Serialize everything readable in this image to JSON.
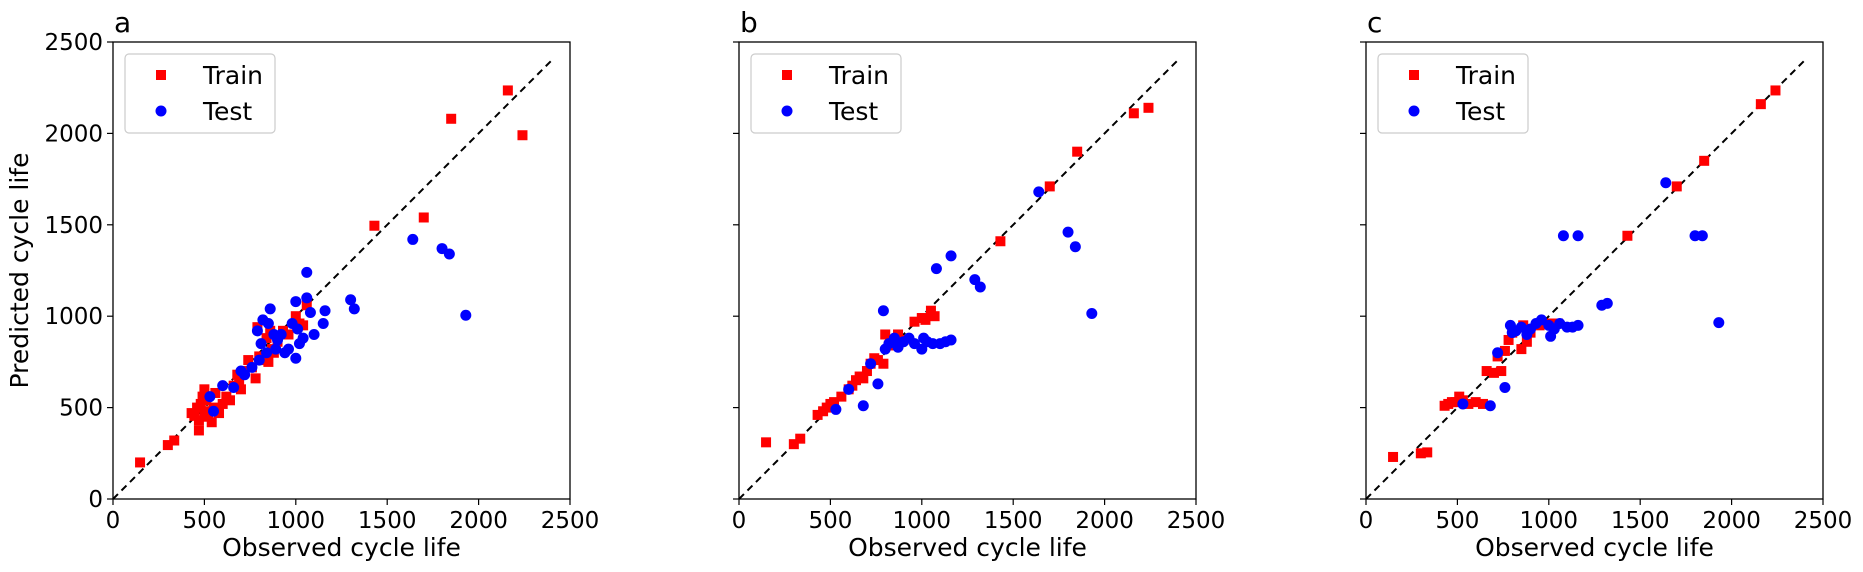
{
  "chart_data": [
    {
      "type": "scatter",
      "panel_label": "a",
      "xlabel": "Observed cycle life",
      "ylabel": "Predicted cycle life",
      "xlim": [
        0,
        2500
      ],
      "ylim": [
        0,
        2500
      ],
      "xticks": [
        "0",
        "500",
        "1000",
        "1500",
        "2000",
        "2500"
      ],
      "yticks": [
        "0",
        "500",
        "1000",
        "1500",
        "2000",
        "2500"
      ],
      "reference_line": {
        "style": "dashed",
        "color": "#000000",
        "from": [
          0,
          0
        ],
        "to": [
          2400,
          2400
        ]
      },
      "legend": {
        "placement": "top-left",
        "entries": [
          "Train",
          "Test"
        ]
      },
      "series": [
        {
          "name": "Train",
          "marker": "square",
          "color": "#ff0000",
          "points": [
            [
              148,
              200
            ],
            [
              300,
              295
            ],
            [
              335,
              320
            ],
            [
              430,
              470
            ],
            [
              445,
              455
            ],
            [
              460,
              500
            ],
            [
              470,
              430
            ],
            [
              470,
              375
            ],
            [
              480,
              520
            ],
            [
              490,
              560
            ],
            [
              500,
              480
            ],
            [
              500,
              600
            ],
            [
              510,
              540
            ],
            [
              520,
              450
            ],
            [
              540,
              420
            ],
            [
              550,
              500
            ],
            [
              560,
              580
            ],
            [
              580,
              470
            ],
            [
              600,
              520
            ],
            [
              620,
              560
            ],
            [
              640,
              540
            ],
            [
              660,
              620
            ],
            [
              680,
              680
            ],
            [
              690,
              650
            ],
            [
              700,
              600
            ],
            [
              720,
              700
            ],
            [
              740,
              760
            ],
            [
              760,
              720
            ],
            [
              780,
              660
            ],
            [
              790,
              940
            ],
            [
              800,
              780
            ],
            [
              820,
              760
            ],
            [
              840,
              880
            ],
            [
              850,
              750
            ],
            [
              860,
              920
            ],
            [
              870,
              820
            ],
            [
              880,
              800
            ],
            [
              900,
              860
            ],
            [
              930,
              920
            ],
            [
              960,
              900
            ],
            [
              1000,
              1000
            ],
            [
              1020,
              960
            ],
            [
              1040,
              950
            ],
            [
              1060,
              1060
            ],
            [
              1430,
              1495
            ],
            [
              1700,
              1540
            ],
            [
              1850,
              2080
            ],
            [
              2160,
              2235
            ],
            [
              2240,
              1990
            ]
          ]
        },
        {
          "name": "Test",
          "marker": "circle",
          "color": "#0000ff",
          "points": [
            [
              530,
              560
            ],
            [
              550,
              480
            ],
            [
              600,
              620
            ],
            [
              660,
              610
            ],
            [
              700,
              700
            ],
            [
              720,
              680
            ],
            [
              760,
              720
            ],
            [
              790,
              920
            ],
            [
              800,
              760
            ],
            [
              810,
              850
            ],
            [
              820,
              980
            ],
            [
              840,
              800
            ],
            [
              850,
              960
            ],
            [
              860,
              1040
            ],
            [
              880,
              900
            ],
            [
              890,
              820
            ],
            [
              900,
              870
            ],
            [
              920,
              900
            ],
            [
              940,
              800
            ],
            [
              960,
              820
            ],
            [
              980,
              960
            ],
            [
              1000,
              1080
            ],
            [
              1000,
              770
            ],
            [
              1010,
              930
            ],
            [
              1020,
              850
            ],
            [
              1040,
              880
            ],
            [
              1060,
              1240
            ],
            [
              1060,
              1100
            ],
            [
              1080,
              1020
            ],
            [
              1100,
              900
            ],
            [
              1150,
              960
            ],
            [
              1160,
              1030
            ],
            [
              1300,
              1090
            ],
            [
              1320,
              1040
            ],
            [
              1640,
              1420
            ],
            [
              1800,
              1370
            ],
            [
              1840,
              1340
            ],
            [
              1930,
              1005
            ]
          ]
        }
      ]
    },
    {
      "type": "scatter",
      "panel_label": "b",
      "xlabel": "Observed cycle life",
      "ylabel": "",
      "xlim": [
        0,
        2500
      ],
      "ylim": [
        0,
        2500
      ],
      "xticks": [
        "0",
        "500",
        "1000",
        "1500",
        "2000",
        "2500"
      ],
      "yticks": [],
      "reference_line": {
        "style": "dashed",
        "color": "#000000",
        "from": [
          0,
          0
        ],
        "to": [
          2400,
          2400
        ]
      },
      "legend": {
        "placement": "top-left",
        "entries": [
          "Train",
          "Test"
        ]
      },
      "series": [
        {
          "name": "Train",
          "marker": "square",
          "color": "#ff0000",
          "points": [
            [
              148,
              310
            ],
            [
              300,
              300
            ],
            [
              335,
              330
            ],
            [
              430,
              460
            ],
            [
              460,
              480
            ],
            [
              480,
              500
            ],
            [
              500,
              520
            ],
            [
              520,
              530
            ],
            [
              560,
              560
            ],
            [
              600,
              600
            ],
            [
              620,
              620
            ],
            [
              640,
              650
            ],
            [
              660,
              670
            ],
            [
              680,
              660
            ],
            [
              700,
              700
            ],
            [
              720,
              740
            ],
            [
              740,
              770
            ],
            [
              760,
              760
            ],
            [
              790,
              740
            ],
            [
              800,
              900
            ],
            [
              820,
              840
            ],
            [
              850,
              860
            ],
            [
              870,
              900
            ],
            [
              900,
              870
            ],
            [
              960,
              970
            ],
            [
              1000,
              990
            ],
            [
              1020,
              980
            ],
            [
              1050,
              1030
            ],
            [
              1070,
              1000
            ],
            [
              1430,
              1410
            ],
            [
              1700,
              1710
            ],
            [
              1850,
              1900
            ],
            [
              2160,
              2110
            ],
            [
              2240,
              2140
            ]
          ]
        },
        {
          "name": "Test",
          "marker": "circle",
          "color": "#0000ff",
          "points": [
            [
              530,
              490
            ],
            [
              600,
              600
            ],
            [
              680,
              510
            ],
            [
              720,
              740
            ],
            [
              760,
              630
            ],
            [
              790,
              1030
            ],
            [
              800,
              820
            ],
            [
              820,
              850
            ],
            [
              850,
              880
            ],
            [
              870,
              830
            ],
            [
              900,
              860
            ],
            [
              930,
              880
            ],
            [
              960,
              850
            ],
            [
              1000,
              820
            ],
            [
              1010,
              880
            ],
            [
              1030,
              860
            ],
            [
              1060,
              850
            ],
            [
              1080,
              1260
            ],
            [
              1100,
              850
            ],
            [
              1130,
              860
            ],
            [
              1160,
              1330
            ],
            [
              1160,
              870
            ],
            [
              1290,
              1200
            ],
            [
              1320,
              1160
            ],
            [
              1640,
              1680
            ],
            [
              1800,
              1460
            ],
            [
              1840,
              1380
            ],
            [
              1930,
              1015
            ]
          ]
        }
      ]
    },
    {
      "type": "scatter",
      "panel_label": "c",
      "xlabel": "Observed cycle life",
      "ylabel": "",
      "xlim": [
        0,
        2500
      ],
      "ylim": [
        0,
        2500
      ],
      "xticks": [
        "0",
        "500",
        "1000",
        "1500",
        "2000",
        "2500"
      ],
      "yticks": [],
      "reference_line": {
        "style": "dashed",
        "color": "#000000",
        "from": [
          0,
          0
        ],
        "to": [
          2400,
          2400
        ]
      },
      "legend": {
        "placement": "top-left",
        "entries": [
          "Train",
          "Test"
        ]
      },
      "series": [
        {
          "name": "Train",
          "marker": "square",
          "color": "#ff0000",
          "points": [
            [
              148,
              230
            ],
            [
              300,
              250
            ],
            [
              335,
              255
            ],
            [
              430,
              510
            ],
            [
              450,
              520
            ],
            [
              470,
              530
            ],
            [
              490,
              530
            ],
            [
              510,
              560
            ],
            [
              530,
              540
            ],
            [
              560,
              520
            ],
            [
              600,
              530
            ],
            [
              640,
              520
            ],
            [
              660,
              700
            ],
            [
              700,
              690
            ],
            [
              720,
              780
            ],
            [
              740,
              700
            ],
            [
              760,
              810
            ],
            [
              780,
              870
            ],
            [
              800,
              910
            ],
            [
              850,
              820
            ],
            [
              860,
              950
            ],
            [
              880,
              860
            ],
            [
              900,
              910
            ],
            [
              950,
              950
            ],
            [
              1000,
              960
            ],
            [
              1050,
              960
            ],
            [
              1430,
              1440
            ],
            [
              1700,
              1710
            ],
            [
              1850,
              1850
            ],
            [
              2160,
              2160
            ],
            [
              2240,
              2235
            ]
          ]
        },
        {
          "name": "Test",
          "marker": "circle",
          "color": "#0000ff",
          "points": [
            [
              530,
              520
            ],
            [
              680,
              510
            ],
            [
              720,
              800
            ],
            [
              760,
              610
            ],
            [
              790,
              950
            ],
            [
              800,
              910
            ],
            [
              820,
              920
            ],
            [
              850,
              940
            ],
            [
              880,
              900
            ],
            [
              900,
              930
            ],
            [
              930,
              960
            ],
            [
              960,
              980
            ],
            [
              1000,
              950
            ],
            [
              1010,
              890
            ],
            [
              1030,
              930
            ],
            [
              1060,
              960
            ],
            [
              1080,
              1440
            ],
            [
              1100,
              940
            ],
            [
              1130,
              940
            ],
            [
              1160,
              1440
            ],
            [
              1160,
              950
            ],
            [
              1290,
              1060
            ],
            [
              1320,
              1070
            ],
            [
              1640,
              1730
            ],
            [
              1800,
              1440
            ],
            [
              1840,
              1440
            ],
            [
              1930,
              965
            ]
          ]
        }
      ]
    }
  ]
}
